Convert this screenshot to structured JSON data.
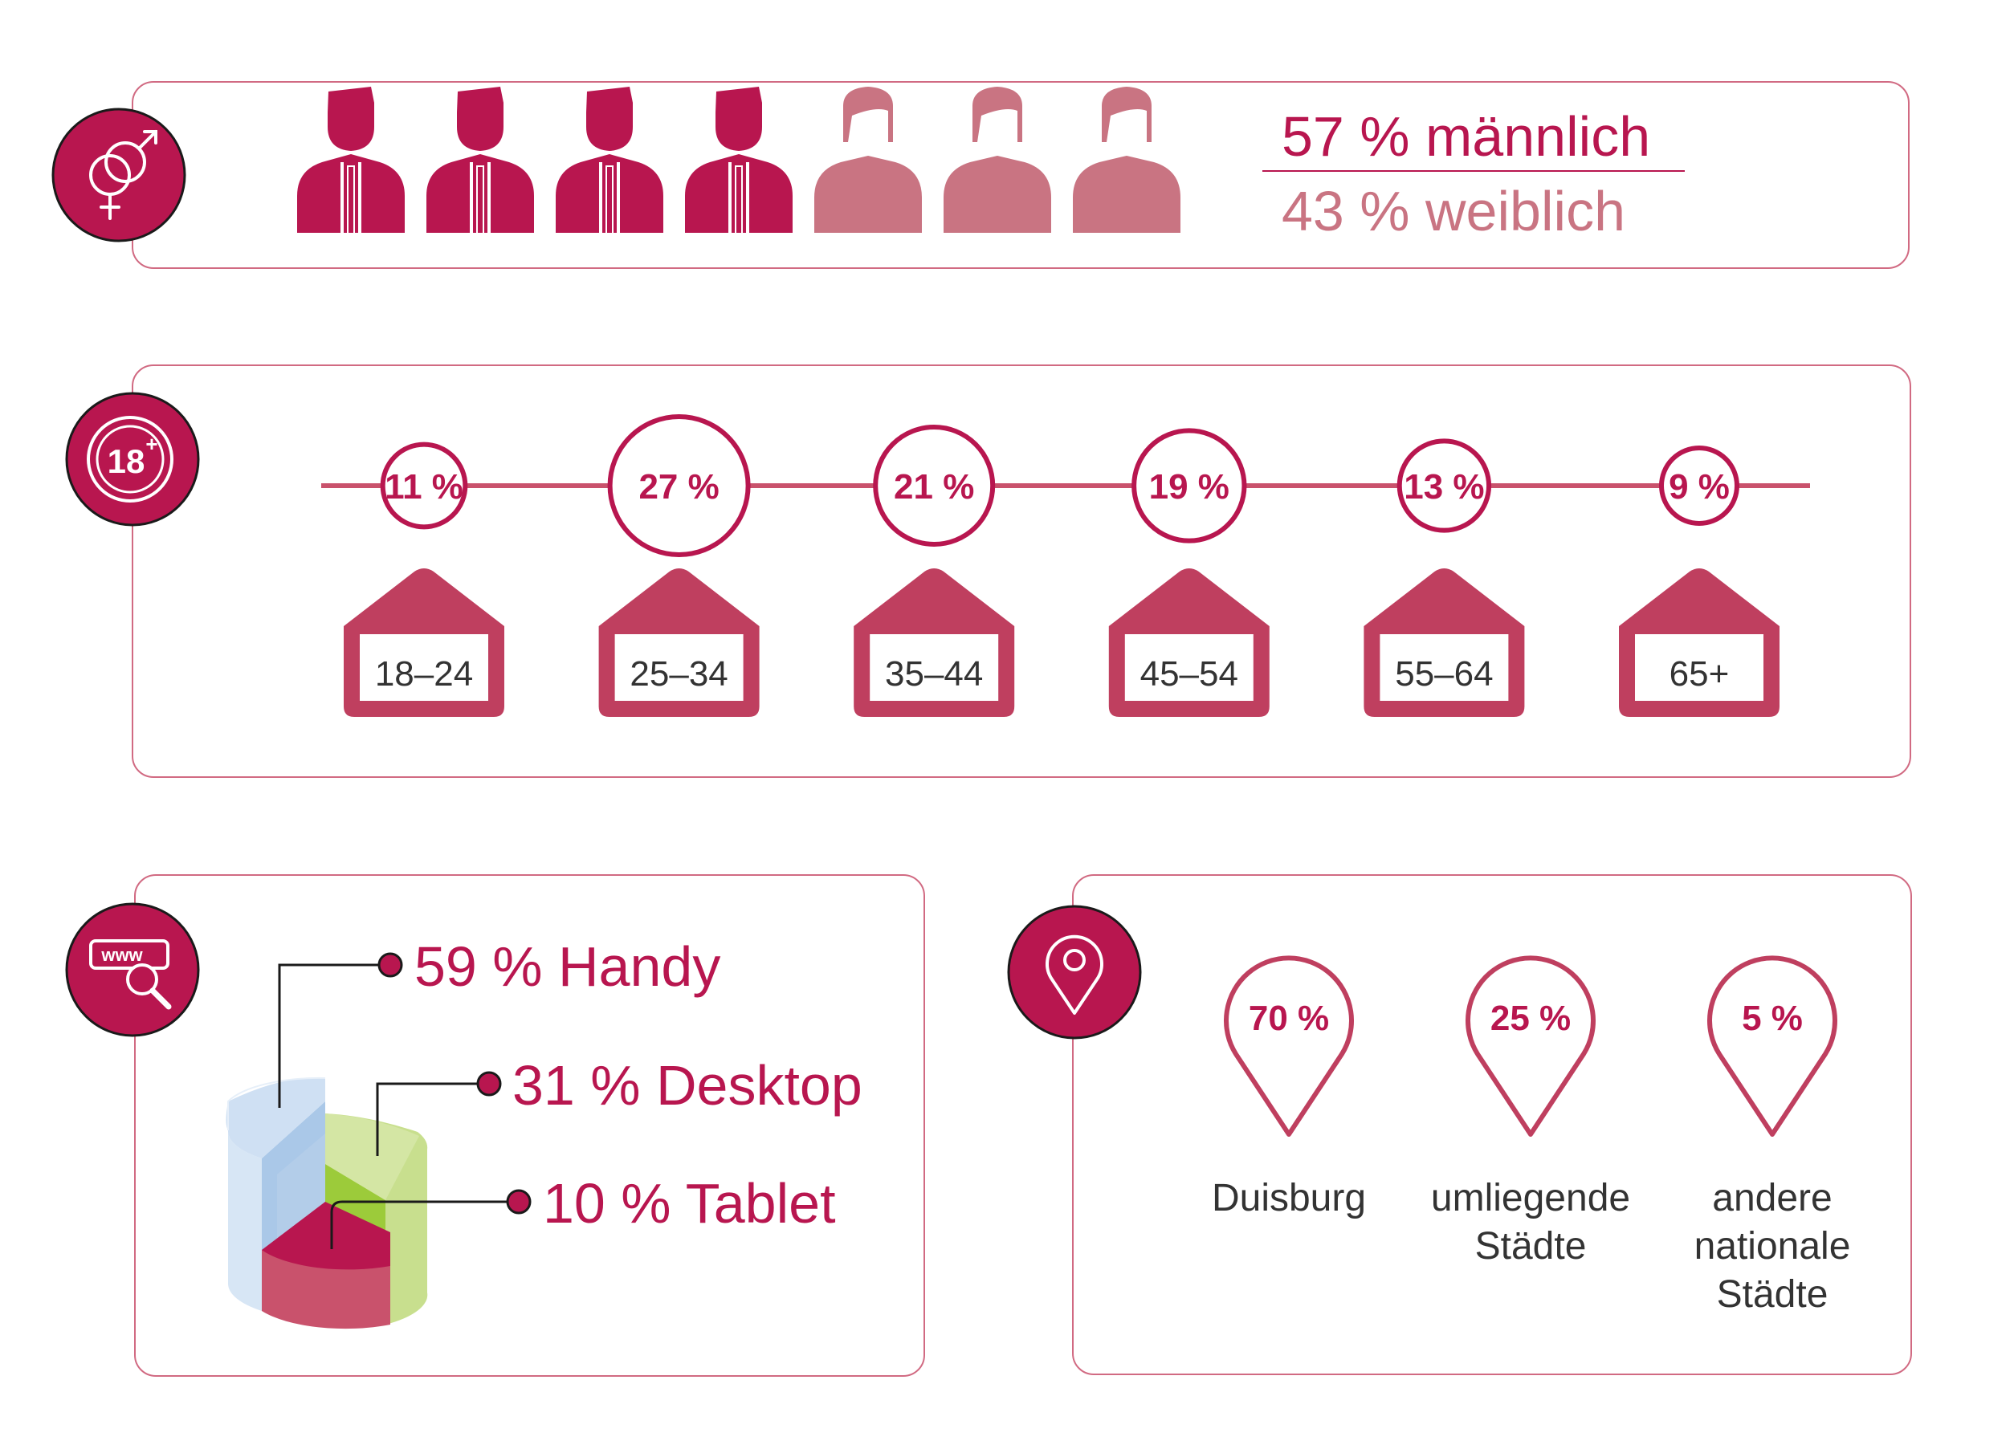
{
  "colors": {
    "accent": "#b8164f",
    "accent_light": "#c97482",
    "border": "#d16a82",
    "age_tag": "#bf3f5f",
    "text_dark": "#333333",
    "pie_blue_face": "#aac8e8",
    "pie_blue_side": "#d7e6f5",
    "pie_green_face": "#9ccb3a",
    "pie_green_side": "#c8df8e",
    "pie_red_face": "#b8164f",
    "pie_red_side": "#c9526c"
  },
  "icons": {
    "gender": "gender-symbols-icon",
    "age": "eighteen-plus-icon",
    "web": "www-search-icon",
    "location": "map-pin-icon"
  },
  "chart_data": [
    {
      "type": "pictogram",
      "title": "",
      "series": [
        {
          "name": "männlich",
          "value": 57,
          "label": "57 % männlich",
          "icon": "male-person-icon",
          "icon_count": 4
        },
        {
          "name": "weiblich",
          "value": 43,
          "label": "43 % weiblich",
          "icon": "female-person-icon",
          "icon_count": 3
        }
      ]
    },
    {
      "type": "bar",
      "title": "",
      "categories": [
        "18–24",
        "25–34",
        "35–44",
        "45–54",
        "55–64",
        "65+"
      ],
      "values": [
        11,
        27,
        21,
        19,
        13,
        9
      ],
      "labels": [
        "11 %",
        "27 %",
        "21 %",
        "19 %",
        "13 %",
        "9 %"
      ]
    },
    {
      "type": "pie",
      "title": "",
      "categories": [
        "Handy",
        "Desktop",
        "Tablet"
      ],
      "values": [
        59,
        31,
        10
      ],
      "labels": [
        "59 % Handy",
        "31 % Desktop",
        "10 % Tablet"
      ]
    },
    {
      "type": "pictogram",
      "title": "",
      "categories": [
        [
          "Duisburg"
        ],
        [
          "umliegende",
          "Städte"
        ],
        [
          "andere",
          "nationale",
          "Städte"
        ]
      ],
      "values": [
        70,
        25,
        5
      ],
      "labels": [
        "70 %",
        "25 %",
        "5 %"
      ]
    }
  ]
}
